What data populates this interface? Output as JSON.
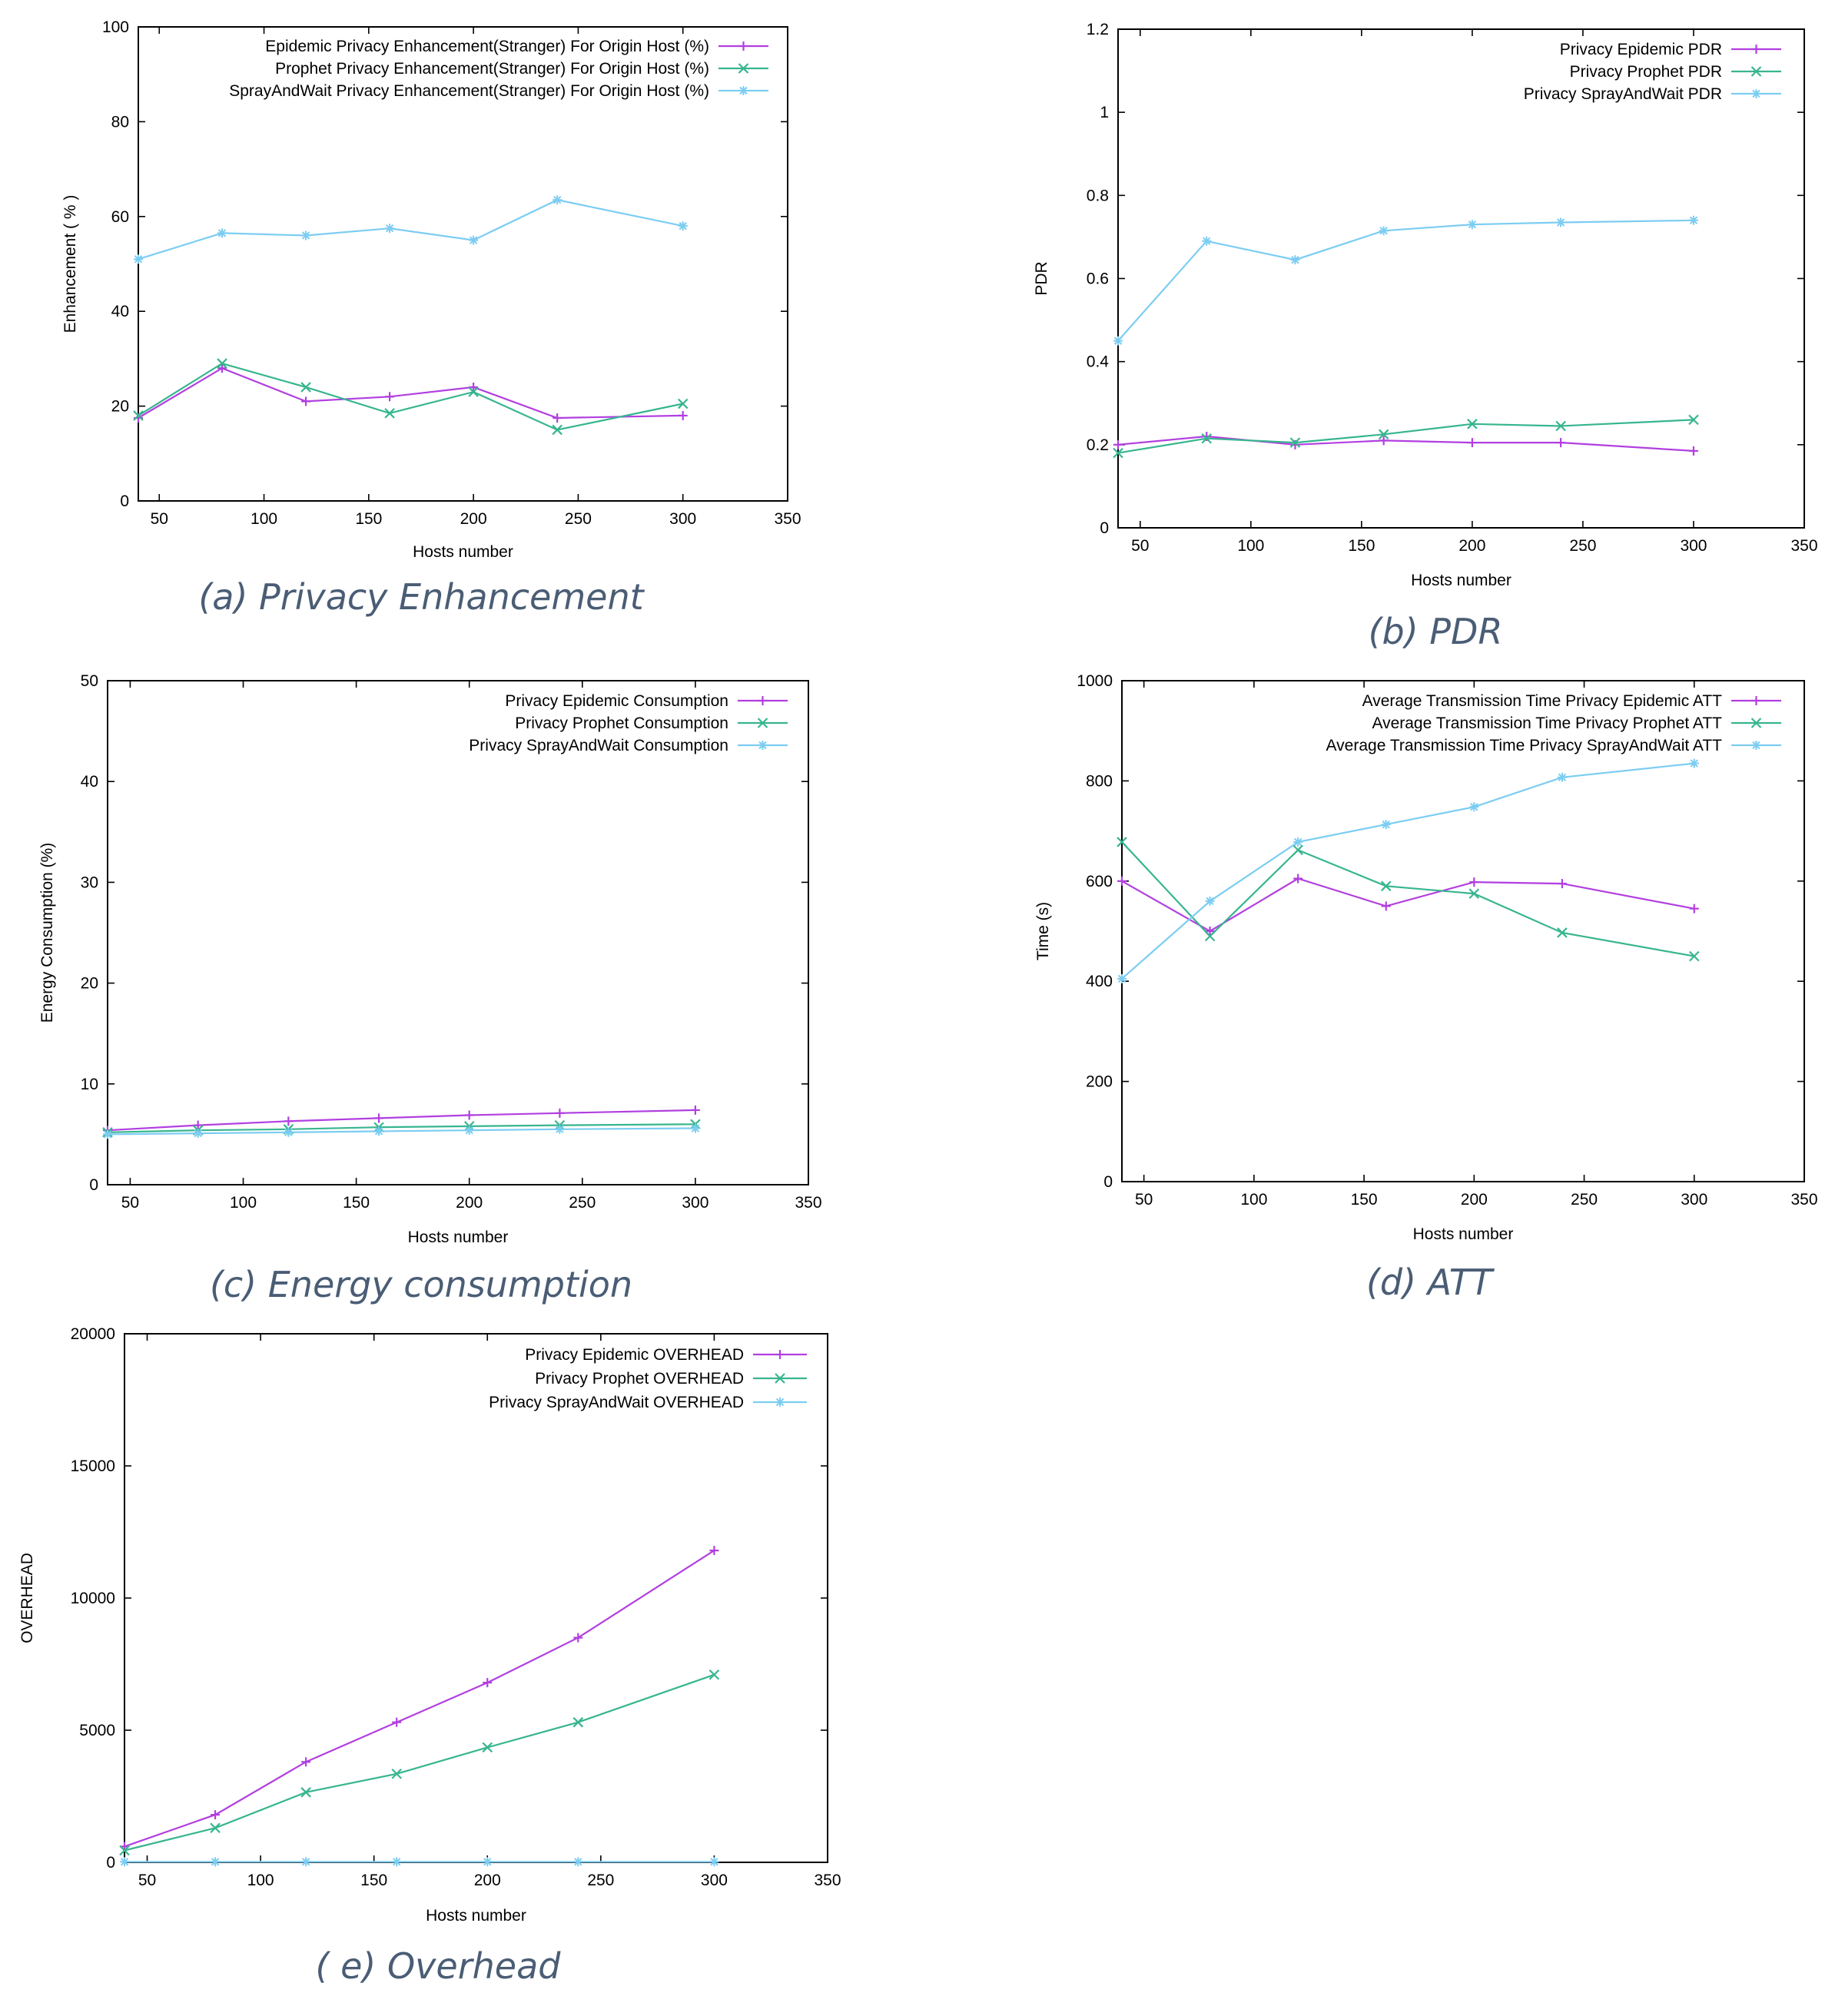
{
  "colors": {
    "epidemic": "#b23fe0",
    "prophet": "#37b58f",
    "spray": "#7ccdf2",
    "caption": "#4a5d75",
    "axis": "#000000"
  },
  "chart_data": [
    {
      "id": "a",
      "type": "line",
      "caption": "(a) Privacy Enhancement",
      "xlabel": "Hosts number",
      "ylabel": "Enhancement ( % )",
      "xlim": [
        40,
        350
      ],
      "ylim": [
        0,
        100
      ],
      "xticks": [
        50,
        100,
        150,
        200,
        250,
        300,
        350
      ],
      "yticks": [
        0,
        20,
        40,
        60,
        80,
        100
      ],
      "x": [
        40,
        80,
        120,
        160,
        200,
        240,
        300
      ],
      "series": [
        {
          "name": "Epidemic Privacy Enhancement(Stranger) For Origin Host (%)",
          "key": "epidemic",
          "marker": "plus",
          "values": [
            17.5,
            28,
            21,
            22,
            24,
            17.5,
            18
          ]
        },
        {
          "name": "Prophet  Privacy Enhancement(Stranger) For Origin Host (%)",
          "key": "prophet",
          "marker": "cross",
          "values": [
            18,
            29,
            24,
            18.5,
            23,
            15,
            20.5
          ]
        },
        {
          "name": "SprayAndWait  Privacy Enhancement(Stranger) For Origin Host (%)",
          "key": "spray",
          "marker": "star",
          "values": [
            51,
            56.5,
            56,
            57.5,
            55,
            63.5,
            58
          ]
        }
      ]
    },
    {
      "id": "b",
      "type": "line",
      "caption": "(b) PDR",
      "xlabel": "Hosts number",
      "ylabel": "PDR",
      "xlim": [
        40,
        350
      ],
      "ylim": [
        0,
        1.2
      ],
      "xticks": [
        50,
        100,
        150,
        200,
        250,
        300,
        350
      ],
      "yticks": [
        0,
        0.2,
        0.4,
        0.6,
        0.8,
        1,
        1.2
      ],
      "x": [
        40,
        80,
        120,
        160,
        200,
        240,
        300
      ],
      "series": [
        {
          "name": "Privacy Epidemic PDR",
          "key": "epidemic",
          "marker": "plus",
          "values": [
            0.2,
            0.22,
            0.2,
            0.21,
            0.205,
            0.205,
            0.185
          ]
        },
        {
          "name": "Privacy Prophet PDR",
          "key": "prophet",
          "marker": "cross",
          "values": [
            0.18,
            0.215,
            0.205,
            0.225,
            0.25,
            0.245,
            0.26
          ]
        },
        {
          "name": "Privacy SprayAndWait PDR",
          "key": "spray",
          "marker": "star",
          "values": [
            0.45,
            0.69,
            0.645,
            0.715,
            0.73,
            0.735,
            0.74
          ]
        }
      ]
    },
    {
      "id": "c",
      "type": "line",
      "caption": "(c) Energy consumption",
      "xlabel": "Hosts number",
      "ylabel": "Energy Consumption (%)",
      "xlim": [
        40,
        350
      ],
      "ylim": [
        0,
        50
      ],
      "xticks": [
        50,
        100,
        150,
        200,
        250,
        300,
        350
      ],
      "yticks": [
        0,
        10,
        20,
        30,
        40,
        50
      ],
      "x": [
        40,
        80,
        120,
        160,
        200,
        240,
        300
      ],
      "series": [
        {
          "name": "Privacy Epidemic Consumption",
          "key": "epidemic",
          "marker": "plus",
          "values": [
            5.4,
            5.9,
            6.3,
            6.6,
            6.9,
            7.1,
            7.4
          ]
        },
        {
          "name": "Privacy Prophet Consumption",
          "key": "prophet",
          "marker": "cross",
          "values": [
            5.2,
            5.4,
            5.5,
            5.7,
            5.8,
            5.9,
            6.0
          ]
        },
        {
          "name": "Privacy SprayAndWait Consumption",
          "key": "spray",
          "marker": "star",
          "values": [
            5.0,
            5.1,
            5.2,
            5.3,
            5.4,
            5.5,
            5.6
          ]
        }
      ]
    },
    {
      "id": "d",
      "type": "line",
      "caption": "(d) ATT",
      "xlabel": "Hosts number",
      "ylabel": "Time (s)",
      "xlim": [
        40,
        350
      ],
      "ylim": [
        0,
        1000
      ],
      "xticks": [
        50,
        100,
        150,
        200,
        250,
        300,
        350
      ],
      "yticks": [
        0,
        200,
        400,
        600,
        800,
        1000
      ],
      "x": [
        40,
        80,
        120,
        160,
        200,
        240,
        300
      ],
      "series": [
        {
          "name": "Average Transmission Time Privacy Epidemic ATT",
          "key": "epidemic",
          "marker": "plus",
          "values": [
            600,
            500,
            605,
            550,
            598,
            595,
            545
          ]
        },
        {
          "name": "Average Transmission Time Privacy Prophet ATT",
          "key": "prophet",
          "marker": "cross",
          "values": [
            678,
            490,
            662,
            590,
            575,
            497,
            450
          ]
        },
        {
          "name": "Average Transmission Time Privacy SprayAndWait ATT",
          "key": "spray",
          "marker": "star",
          "values": [
            405,
            560,
            678,
            713,
            748,
            807,
            835
          ]
        }
      ]
    },
    {
      "id": "e",
      "type": "line",
      "caption": "( e) Overhead",
      "xlabel": "Hosts number",
      "ylabel": "OVERHEAD",
      "xlim": [
        40,
        350
      ],
      "ylim": [
        0,
        20000
      ],
      "xticks": [
        50,
        100,
        150,
        200,
        250,
        300,
        350
      ],
      "yticks": [
        0,
        5000,
        10000,
        15000,
        20000
      ],
      "x": [
        40,
        80,
        120,
        160,
        200,
        240,
        300
      ],
      "series": [
        {
          "name": "Privacy Epidemic OVERHEAD",
          "key": "epidemic",
          "marker": "plus",
          "values": [
            600,
            1800,
            3800,
            5300,
            6800,
            8500,
            11800
          ]
        },
        {
          "name": "Privacy Prophet OVERHEAD",
          "key": "prophet",
          "marker": "cross",
          "values": [
            450,
            1300,
            2650,
            3350,
            4350,
            5300,
            7100
          ]
        },
        {
          "name": "Privacy SprayAndWait OVERHEAD",
          "key": "spray",
          "marker": "star",
          "values": [
            20,
            20,
            20,
            20,
            20,
            20,
            20
          ]
        }
      ]
    }
  ]
}
